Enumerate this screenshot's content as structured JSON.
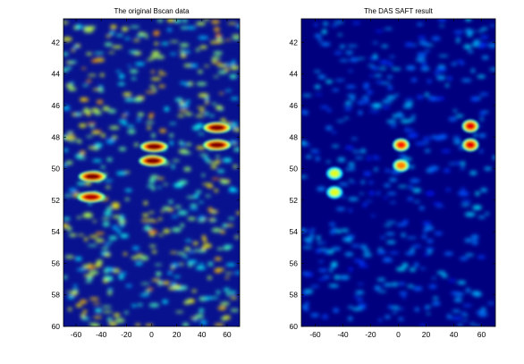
{
  "chart_data": [
    {
      "type": "heatmap",
      "title": "The original Bscan data",
      "xlabel": "",
      "ylabel": "",
      "xlim": [
        -70,
        70
      ],
      "ylim": [
        60,
        40.5
      ],
      "y_axis_direction": "down",
      "grid": false,
      "colormap": "jet",
      "x_ticks": [
        -60,
        -40,
        -20,
        0,
        20,
        40,
        60
      ],
      "y_ticks": [
        42,
        44,
        46,
        48,
        50,
        52,
        54,
        56,
        58,
        60
      ],
      "background_level": 0.3,
      "hotspots": [
        {
          "x": -47,
          "y": 50.5,
          "intensity": 1.0
        },
        {
          "x": -48,
          "y": 51.8,
          "intensity": 0.95
        },
        {
          "x": 2,
          "y": 48.6,
          "intensity": 1.0
        },
        {
          "x": 1,
          "y": 49.5,
          "intensity": 1.0
        },
        {
          "x": 52,
          "y": 47.4,
          "intensity": 1.0
        },
        {
          "x": 52,
          "y": 48.5,
          "intensity": 1.0
        }
      ]
    },
    {
      "type": "heatmap",
      "title": "The DAS SAFT result",
      "xlabel": "",
      "ylabel": "",
      "xlim": [
        -70,
        70
      ],
      "ylim": [
        60,
        40.5
      ],
      "y_axis_direction": "down",
      "grid": false,
      "colormap": "jet",
      "x_ticks": [
        -60,
        -40,
        -20,
        0,
        20,
        40,
        60
      ],
      "y_ticks": [
        42,
        44,
        46,
        48,
        50,
        52,
        54,
        56,
        58,
        60
      ],
      "background_level": 0.15,
      "hotspots": [
        {
          "x": -46,
          "y": 50.3,
          "intensity": 0.6
        },
        {
          "x": -46,
          "y": 51.5,
          "intensity": 0.6
        },
        {
          "x": 2,
          "y": 48.5,
          "intensity": 0.85
        },
        {
          "x": 2,
          "y": 49.8,
          "intensity": 0.75
        },
        {
          "x": 52,
          "y": 47.3,
          "intensity": 0.9
        },
        {
          "x": 52,
          "y": 48.5,
          "intensity": 0.9
        }
      ]
    }
  ]
}
